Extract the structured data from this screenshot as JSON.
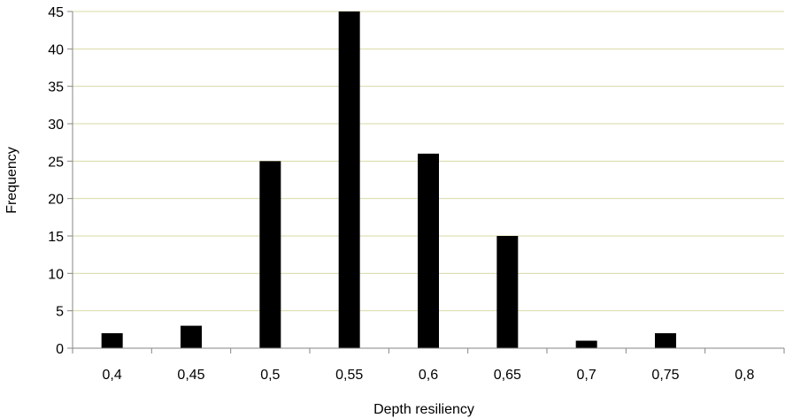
{
  "chart_data": {
    "type": "bar",
    "title": "",
    "xlabel": "Depth resiliency",
    "ylabel": "Frequency",
    "categories": [
      "0,4",
      "0,45",
      "0,5",
      "0,55",
      "0,6",
      "0,65",
      "0,7",
      "0,75",
      "0,8"
    ],
    "values": [
      2,
      3,
      25,
      45,
      26,
      15,
      1,
      2,
      0
    ],
    "ylim": [
      0,
      45
    ],
    "yticks": [
      0,
      5,
      10,
      15,
      20,
      25,
      30,
      35,
      40,
      45
    ],
    "grid": true,
    "legend": "none",
    "colors": {
      "bar": "#000000",
      "grid": "#d9d9a6",
      "axis": "#868686",
      "text": "#000000"
    }
  }
}
